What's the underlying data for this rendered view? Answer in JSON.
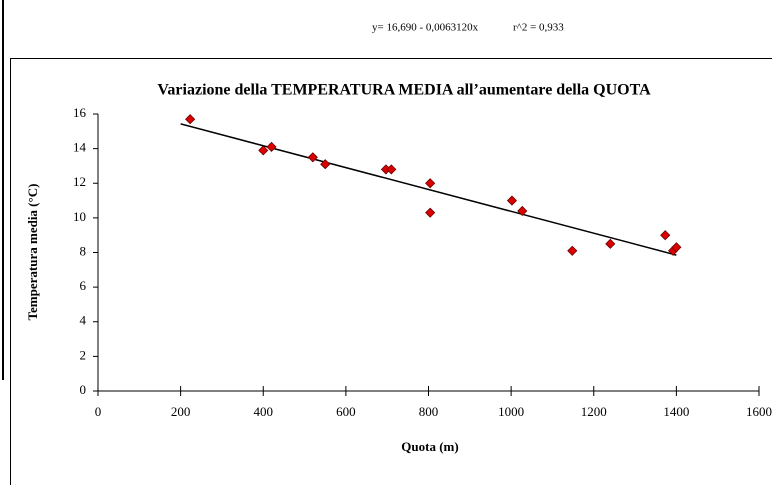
{
  "chart_data": {
    "type": "scatter",
    "title": "Variazione della TEMPERATURA MEDIA all’aumentare della QUOTA",
    "equation": "y= 16,690 - 0,0063120x",
    "r_squared": "r^2 = 0,933",
    "x_label": "Quota (m)",
    "y_label": "Temperatura media (°C)",
    "series": [
      {
        "color": "#dd0000",
        "x": [
          223,
          400,
          420,
          520,
          550,
          697,
          710,
          804,
          804,
          1002,
          1027,
          1148,
          1240,
          1373,
          1392,
          1400
        ],
        "values": [
          15.7,
          13.9,
          14.1,
          13.5,
          13.1,
          12.8,
          12.8,
          12.0,
          10.3,
          11.0,
          10.4,
          8.1,
          8.5,
          9.0,
          8.1,
          8.3
        ]
      }
    ],
    "trendline": {
      "x": [
        200,
        1400
      ],
      "y": [
        15.43,
        7.85
      ],
      "color": "#000000"
    },
    "xlim": [
      0,
      1600
    ],
    "xticks": [
      0,
      200,
      400,
      600,
      800,
      1000,
      1200,
      1400,
      1600
    ],
    "ylim": [
      0,
      16
    ],
    "yticks": [
      0,
      2,
      4,
      6,
      8,
      10,
      12,
      14,
      16
    ]
  }
}
